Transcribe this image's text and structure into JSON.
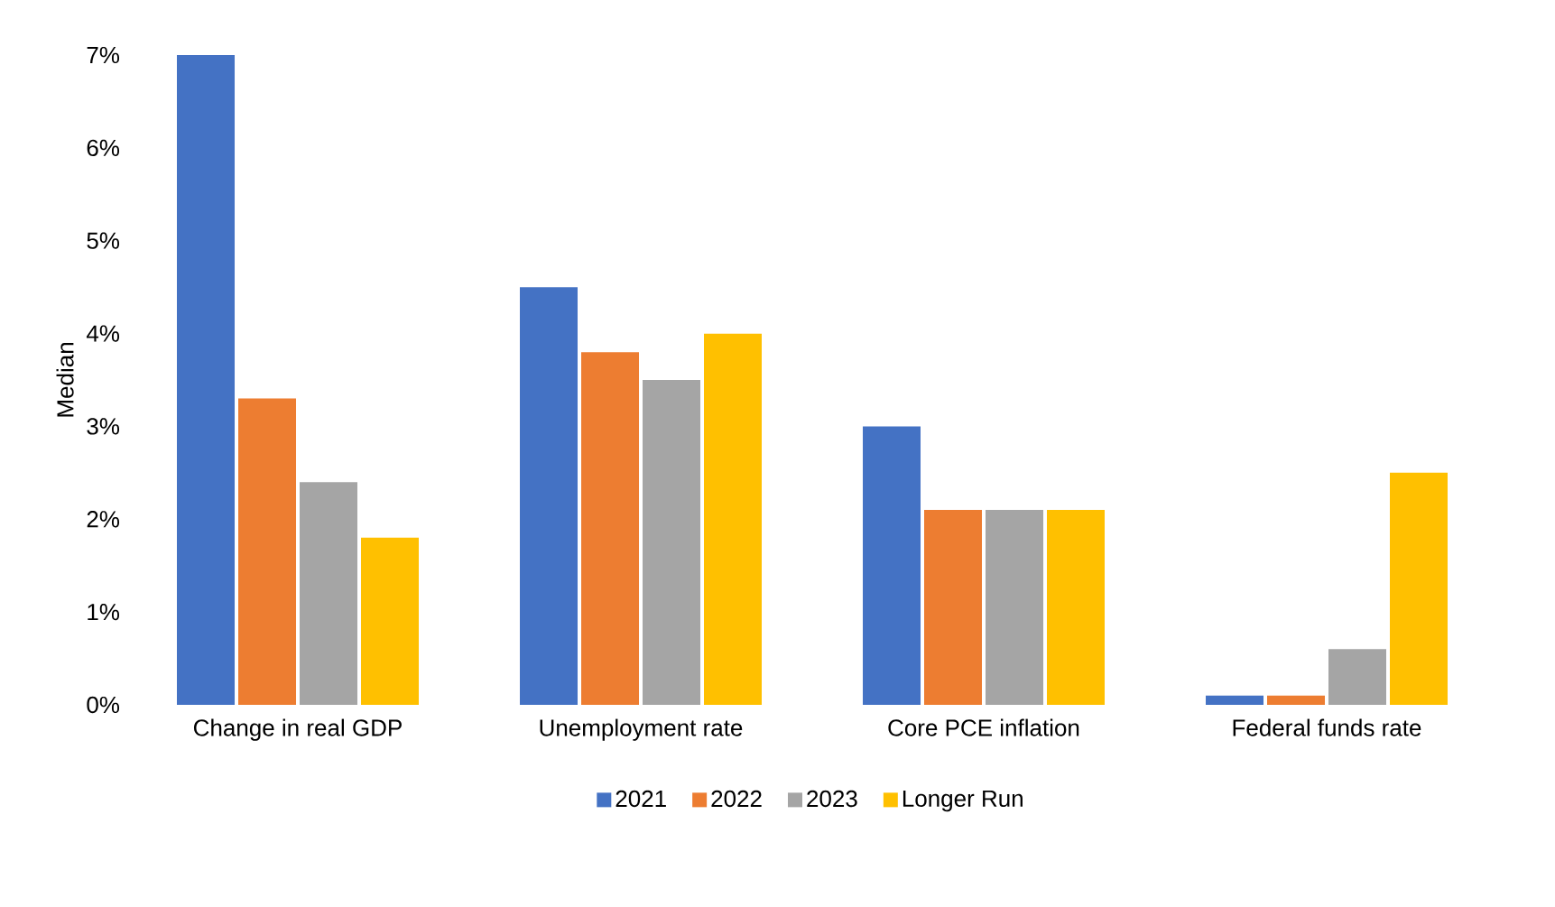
{
  "chart_data": {
    "type": "bar",
    "ylabel": "Median",
    "categories": [
      "Change in real GDP",
      "Unemployment rate",
      "Core PCE inflation",
      "Federal funds rate"
    ],
    "series": [
      {
        "name": "2021",
        "color": "#4472c4",
        "values": [
          7.0,
          4.5,
          3.0,
          0.1
        ]
      },
      {
        "name": "2022",
        "color": "#ed7d31",
        "values": [
          3.3,
          3.8,
          2.1,
          0.1
        ]
      },
      {
        "name": "2023",
        "color": "#a5a5a5",
        "values": [
          2.4,
          3.5,
          2.1,
          0.6
        ]
      },
      {
        "name": "Longer Run",
        "color": "#ffc000",
        "values": [
          1.8,
          4.0,
          2.1,
          2.5
        ]
      }
    ],
    "ylim": [
      0,
      7
    ],
    "yticks": [
      {
        "value": 0,
        "label": "0%"
      },
      {
        "value": 1,
        "label": "1%"
      },
      {
        "value": 2,
        "label": "2%"
      },
      {
        "value": 3,
        "label": "3%"
      },
      {
        "value": 4,
        "label": "4%"
      },
      {
        "value": 5,
        "label": "5%"
      },
      {
        "value": 6,
        "label": "6%"
      },
      {
        "value": 7,
        "label": "7%"
      }
    ],
    "legend": "bottom",
    "grid": false
  }
}
